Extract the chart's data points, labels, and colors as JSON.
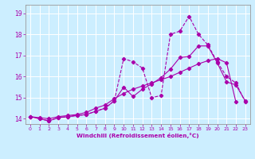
{
  "xlabel": "Windchill (Refroidissement éolien,°C)",
  "background_color": "#cceeff",
  "line_color": "#aa00aa",
  "grid_color": "#ffffff",
  "x_values": [
    0,
    1,
    2,
    3,
    4,
    5,
    6,
    7,
    8,
    9,
    10,
    11,
    12,
    13,
    14,
    15,
    16,
    17,
    18,
    19,
    20,
    21,
    22,
    23
  ],
  "line1": [
    14.1,
    14.0,
    13.9,
    14.05,
    14.1,
    14.15,
    14.2,
    14.35,
    14.5,
    14.85,
    16.85,
    16.7,
    16.4,
    15.0,
    15.1,
    18.0,
    18.15,
    18.85,
    18.0,
    17.5,
    16.7,
    16.0,
    15.7,
    14.8
  ],
  "line2": [
    14.1,
    14.0,
    13.9,
    14.05,
    14.1,
    14.15,
    14.2,
    14.35,
    14.5,
    14.85,
    15.5,
    15.05,
    15.4,
    15.65,
    15.95,
    16.35,
    16.9,
    16.95,
    17.45,
    17.45,
    16.65,
    15.75,
    15.6,
    14.85
  ],
  "line3": [
    14.1,
    14.05,
    14.0,
    14.1,
    14.15,
    14.2,
    14.3,
    14.5,
    14.65,
    14.95,
    15.2,
    15.4,
    15.55,
    15.7,
    15.85,
    16.0,
    16.2,
    16.4,
    16.6,
    16.75,
    16.85,
    16.65,
    14.8,
    null
  ],
  "ylim": [
    13.75,
    19.4
  ],
  "xlim": [
    -0.5,
    23.5
  ],
  "yticks": [
    14,
    15,
    16,
    17,
    18,
    19
  ],
  "xticks": [
    0,
    1,
    2,
    3,
    4,
    5,
    6,
    7,
    8,
    9,
    10,
    11,
    12,
    13,
    14,
    15,
    16,
    17,
    18,
    19,
    20,
    21,
    22,
    23
  ]
}
